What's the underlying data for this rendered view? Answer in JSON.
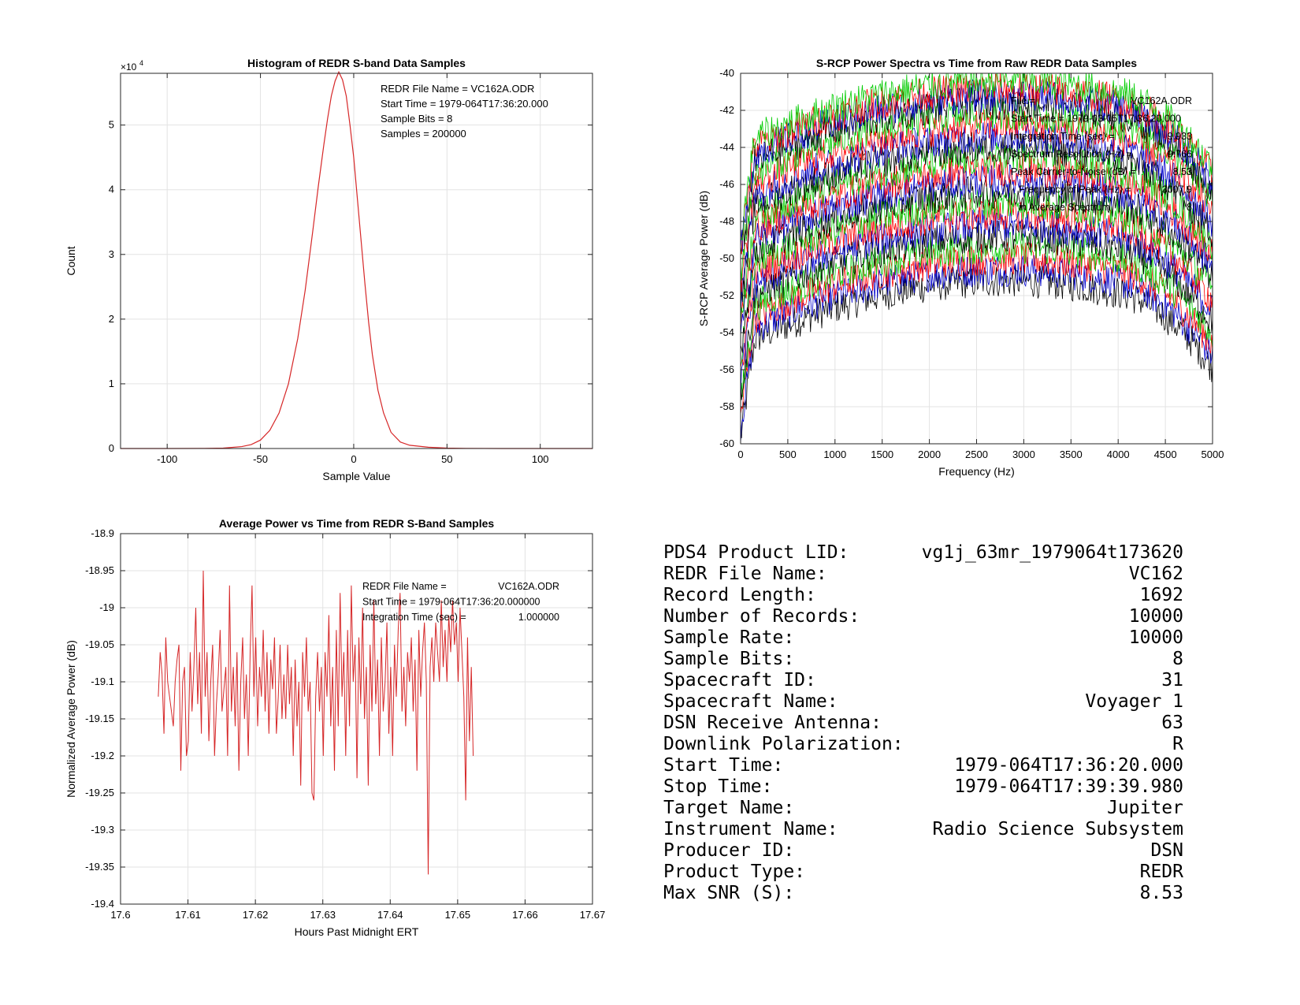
{
  "chart_data": [
    {
      "type": "line",
      "title": "Histogram of REDR S-band Data Samples",
      "xlabel": "Sample Value",
      "ylabel": "Count",
      "y_exponent_label": "×10^4",
      "xlim": [
        -125,
        128
      ],
      "ylim": [
        0,
        5.8
      ],
      "xticks": [
        "-100",
        "-50",
        "0",
        "50",
        "100"
      ],
      "xtick_values": [
        -100,
        -50,
        0,
        50,
        100
      ],
      "yticks": [
        "0",
        "1",
        "2",
        "3",
        "4",
        "5"
      ],
      "ytick_values": [
        0,
        1,
        2,
        3,
        4,
        5
      ],
      "grid": true,
      "series": [
        {
          "color": "#d62728",
          "points": [
            [
              -128,
              0
            ],
            [
              -100,
              0
            ],
            [
              -80,
              0.002
            ],
            [
              -70,
              0.006
            ],
            [
              -60,
              0.03
            ],
            [
              -55,
              0.06
            ],
            [
              -50,
              0.13
            ],
            [
              -45,
              0.28
            ],
            [
              -40,
              0.55
            ],
            [
              -35,
              1.0
            ],
            [
              -30,
              1.7
            ],
            [
              -26,
              2.45
            ],
            [
              -22,
              3.35
            ],
            [
              -19,
              4.05
            ],
            [
              -16,
              4.7
            ],
            [
              -14,
              5.1
            ],
            [
              -12,
              5.45
            ],
            [
              -10,
              5.68
            ],
            [
              -8,
              5.82
            ],
            [
              -6,
              5.7
            ],
            [
              -4,
              5.45
            ],
            [
              -2,
              5.0
            ],
            [
              0,
              4.5
            ],
            [
              2,
              3.85
            ],
            [
              4,
              3.2
            ],
            [
              6,
              2.55
            ],
            [
              8,
              1.95
            ],
            [
              10,
              1.45
            ],
            [
              13,
              0.9
            ],
            [
              16,
              0.55
            ],
            [
              20,
              0.25
            ],
            [
              25,
              0.1
            ],
            [
              30,
              0.05
            ],
            [
              40,
              0.02
            ],
            [
              50,
              0.007
            ],
            [
              60,
              0.002
            ],
            [
              80,
              0
            ],
            [
              128,
              0
            ]
          ]
        }
      ],
      "annotations": [
        "REDR File Name = VC162A.ODR",
        "Start Time = 1979-064T17:36:20.000",
        "Sample Bits = 8",
        "Samples = 200000"
      ]
    },
    {
      "type": "line",
      "title": "S-RCP Power Spectra vs Time from Raw REDR Data Samples",
      "xlabel": "Frequency (Hz)",
      "ylabel": "S-RCP Average Power (dB)",
      "xlim": [
        0,
        5000
      ],
      "ylim": [
        -60,
        -40
      ],
      "xticks": [
        "0",
        "500",
        "1000",
        "1500",
        "2000",
        "2500",
        "3000",
        "3500",
        "4000",
        "4500",
        "5000"
      ],
      "xtick_values": [
        0,
        500,
        1000,
        1500,
        2000,
        2500,
        3000,
        3500,
        4000,
        4500,
        5000
      ],
      "yticks": [
        "-60",
        "-58",
        "-56",
        "-54",
        "-52",
        "-50",
        "-48",
        "-46",
        "-44",
        "-42",
        "-40"
      ],
      "ytick_values": [
        -60,
        -58,
        -56,
        -54,
        -52,
        -50,
        -48,
        -46,
        -44,
        -42,
        -40
      ],
      "grid": true,
      "series_colors": [
        "#000000",
        "#0000cc",
        "#ff0000",
        "#00cc00"
      ],
      "series_count": 20,
      "spectrum_offsets_db": [
        -52.8,
        -52.2,
        -51.6,
        -51.0,
        -50.4,
        -49.8,
        -49.2,
        -48.6,
        -48.0,
        -47.4,
        -46.8,
        -46.2,
        -45.6,
        -45.0,
        -44.4,
        -43.8,
        -43.2,
        -42.8,
        -42.4,
        -42.0
      ],
      "noise_db": 0.7,
      "annotations": [
        {
          "label": "File =",
          "value": "VC162A.ODR"
        },
        {
          "label": "Start Time = 1979-03-05T17:36:20.000",
          "value": ""
        },
        {
          "label": "Integration Time (sec) =",
          "value": "9.933"
        },
        {
          "label": "Spectrum Resolution (Hz) =",
          "value": "9.766"
        },
        {
          "label": "Peak Carrier-to-Noise (dB) =",
          "value": "8.53"
        },
        {
          "label": "Frequency of Peak (Hz) =",
          "value": "3007.9"
        },
        {
          "label": "in Average Spectrum",
          "value": "8"
        }
      ]
    },
    {
      "type": "line",
      "title": "Average Power vs Time from REDR S-Band Samples",
      "xlabel": "Hours Past Midnight ERT",
      "ylabel": "Normalized Average Power (dB)",
      "xlim": [
        17.6,
        17.67
      ],
      "ylim": [
        -19.4,
        -18.9
      ],
      "xticks": [
        "17.6",
        "17.61",
        "17.62",
        "17.63",
        "17.64",
        "17.65",
        "17.66",
        "17.67"
      ],
      "xtick_values": [
        17.6,
        17.61,
        17.62,
        17.63,
        17.64,
        17.65,
        17.66,
        17.67
      ],
      "yticks": [
        "-19.4",
        "-19.35",
        "-19.3",
        "-19.25",
        "-19.2",
        "-19.15",
        "-19.1",
        "-19.05",
        "-19",
        "-18.95",
        "-18.9"
      ],
      "ytick_values": [
        -19.4,
        -19.35,
        -19.3,
        -19.25,
        -19.2,
        -19.15,
        -19.1,
        -19.05,
        -19.0,
        -18.95,
        -18.9
      ],
      "grid": true,
      "series": [
        {
          "color": "#d62728",
          "x_start": 17.6056,
          "x_step": 0.000278,
          "y": [
            -19.12,
            -19.06,
            -19.09,
            -19.17,
            -19.04,
            -19.1,
            -19.12,
            -19.14,
            -19.16,
            -19.1,
            -19.07,
            -19.05,
            -19.22,
            -19.1,
            -19.08,
            -19.2,
            -19.18,
            -19.06,
            -19.14,
            -19.08,
            -19.0,
            -19.13,
            -19.06,
            -19.17,
            -18.95,
            -19.12,
            -19.06,
            -19.18,
            -19.1,
            -19.05,
            -19.2,
            -19.13,
            -19.09,
            -19.03,
            -19.14,
            -19.11,
            -19.08,
            -19.2,
            -18.97,
            -19.14,
            -19.08,
            -19.16,
            -19.06,
            -19.22,
            -19.1,
            -19.04,
            -19.15,
            -19.09,
            -19.2,
            -19.06,
            -18.97,
            -19.12,
            -19.04,
            -19.16,
            -19.08,
            -19.12,
            -19.03,
            -19.14,
            -19.06,
            -19.17,
            -19.07,
            -19.11,
            -19.04,
            -19.17,
            -19.12,
            -19.05,
            -19.15,
            -19.09,
            -19.15,
            -19.05,
            -19.13,
            -19.08,
            -19.2,
            -19.07,
            -19.16,
            -19.1,
            -19.24,
            -19.06,
            -19.12,
            -19.04,
            -19.14,
            -19.1,
            -19.25,
            -19.26,
            -19.12,
            -19.06,
            -19.14,
            -19.08,
            -19.2,
            -19.06,
            -19.12,
            -19.01,
            -19.16,
            -19.08,
            -19.22,
            -19.03,
            -19.16,
            -18.98,
            -19.12,
            -19.06,
            -19.2,
            -19.03,
            -19.16,
            -18.97,
            -19.1,
            -19.05,
            -19.23,
            -19.04,
            -19.13,
            -19.0,
            -19.15,
            -19.08,
            -19.24,
            -19.05,
            -19.14,
            -18.99,
            -19.13,
            -19.07,
            -19.2,
            -19.04,
            -19.14,
            -19.1,
            -19.02,
            -19.17,
            -19.08,
            -19.2,
            -19.05,
            -19.12,
            -19.03,
            -18.98,
            -19.14,
            -19.08,
            -19.16,
            -19.06,
            -19.1,
            -19.04,
            -19.14,
            -19.07,
            -19.22,
            -19.03,
            -19.12,
            -19.06,
            -19.02,
            -19.1,
            -19.36,
            -19.08,
            -19.04,
            -19.1,
            -19.02,
            -19.06,
            -19.1,
            -18.99,
            -19.08,
            -19.03,
            -19.1,
            -19.01,
            -19.06,
            -18.99,
            -19.05,
            -19.02,
            -19.1,
            -19.0,
            -19.06,
            -19.12,
            -19.26,
            -19.04,
            -19.18,
            -19.08,
            -19.2
          ]
        }
      ],
      "annotations": [
        {
          "label": "REDR File Name =",
          "value": "VC162A.ODR"
        },
        {
          "label": "Start Time = 1979-064T17:36:20.000000",
          "value": ""
        },
        {
          "label": "Integration Time (sec) =",
          "value": "1.000000"
        }
      ]
    }
  ],
  "info_table": [
    {
      "label": "PDS4 Product LID:",
      "value": "vg1j_63mr_1979064t173620"
    },
    {
      "label": "REDR File Name:",
      "value": "VC162"
    },
    {
      "label": "Record Length:",
      "value": "1692"
    },
    {
      "label": "Number of Records:",
      "value": "10000"
    },
    {
      "label": "Sample Rate:",
      "value": "10000"
    },
    {
      "label": "Sample Bits:",
      "value": "8"
    },
    {
      "label": "Spacecraft ID:",
      "value": "31"
    },
    {
      "label": "Spacecraft Name:",
      "value": "Voyager 1"
    },
    {
      "label": "DSN Receive Antenna:",
      "value": "63"
    },
    {
      "label": "Downlink Polarization:",
      "value": "R"
    },
    {
      "label": "Start Time:",
      "value": "1979-064T17:36:20.000"
    },
    {
      "label": "Stop Time:",
      "value": "1979-064T17:39:39.980"
    },
    {
      "label": "Target Name:",
      "value": "Jupiter"
    },
    {
      "label": "Instrument Name:",
      "value": "Radio Science Subsystem"
    },
    {
      "label": "Producer ID:",
      "value": "DSN"
    },
    {
      "label": "Product Type:",
      "value": "REDR"
    },
    {
      "label": "Max SNR (S):",
      "value": "8.53"
    }
  ]
}
